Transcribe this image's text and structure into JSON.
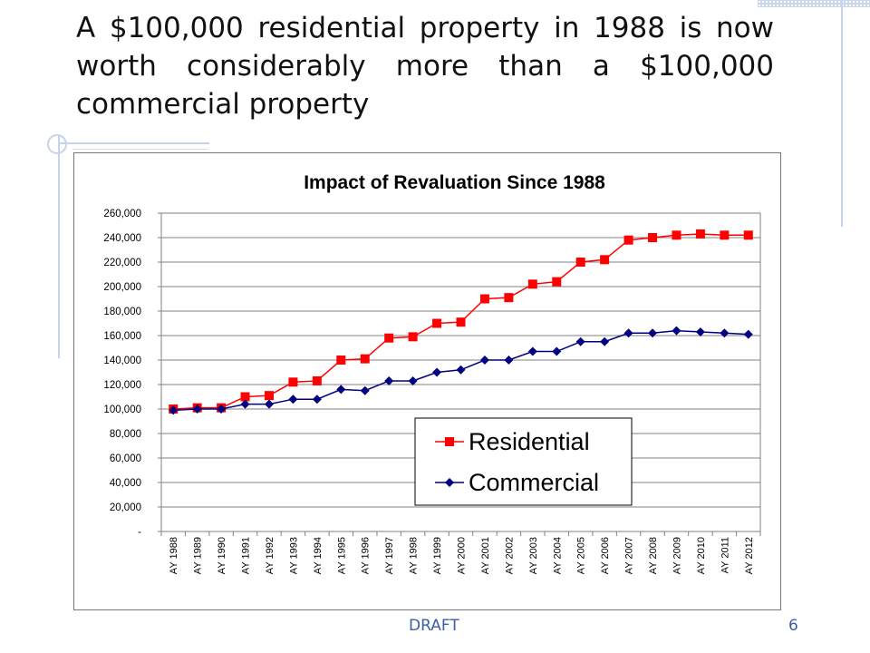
{
  "slide": {
    "title": "A $100,000 residential property in 1988 is now worth considerably more than a $100,000 commercial property",
    "footer_label": "DRAFT",
    "page_number": "6",
    "accent_color": "#c7d3e8"
  },
  "chart_data": {
    "type": "line",
    "title": "Impact of Revaluation Since 1988",
    "xlabel": "",
    "ylabel": "",
    "ylim": [
      0,
      260000
    ],
    "y_ticks": [
      0,
      20000,
      40000,
      60000,
      80000,
      100000,
      120000,
      140000,
      160000,
      180000,
      200000,
      220000,
      240000,
      260000
    ],
    "y_tick_labels": [
      "-",
      "20,000",
      "40,000",
      "60,000",
      "80,000",
      "100,000",
      "120,000",
      "140,000",
      "160,000",
      "180,000",
      "200,000",
      "220,000",
      "240,000",
      "260,000"
    ],
    "grid": "horizontal",
    "legend_position": "bottom-right",
    "categories": [
      "AY 1988",
      "AY 1989",
      "AY 1990",
      "AY 1991",
      "AY 1992",
      "AY 1993",
      "AY 1994",
      "AY 1995",
      "AY 1996",
      "AY 1997",
      "AY 1998",
      "AY 1999",
      "AY 2000",
      "AY 2001",
      "AY 2002",
      "AY 2003",
      "AY 2004",
      "AY 2005",
      "AY 2006",
      "AY 2007",
      "AY 2008",
      "AY 2009",
      "AY 2010",
      "AY 2011",
      "AY 2012"
    ],
    "series": [
      {
        "name": "Residential",
        "color": "#ff0000",
        "marker": "square",
        "values": [
          100000,
          101000,
          101000,
          110000,
          111000,
          122000,
          123000,
          140000,
          141000,
          158000,
          159000,
          170000,
          171000,
          190000,
          191000,
          202000,
          204000,
          220000,
          222000,
          238000,
          240000,
          242000,
          243000,
          242000,
          242000
        ]
      },
      {
        "name": "Commercial",
        "color": "#000080",
        "marker": "diamond",
        "values": [
          99000,
          100000,
          100000,
          104000,
          104000,
          108000,
          108000,
          116000,
          115000,
          123000,
          123000,
          130000,
          132000,
          140000,
          140000,
          147000,
          147000,
          155000,
          155000,
          162000,
          162000,
          164000,
          163000,
          162000,
          161000
        ]
      }
    ]
  }
}
